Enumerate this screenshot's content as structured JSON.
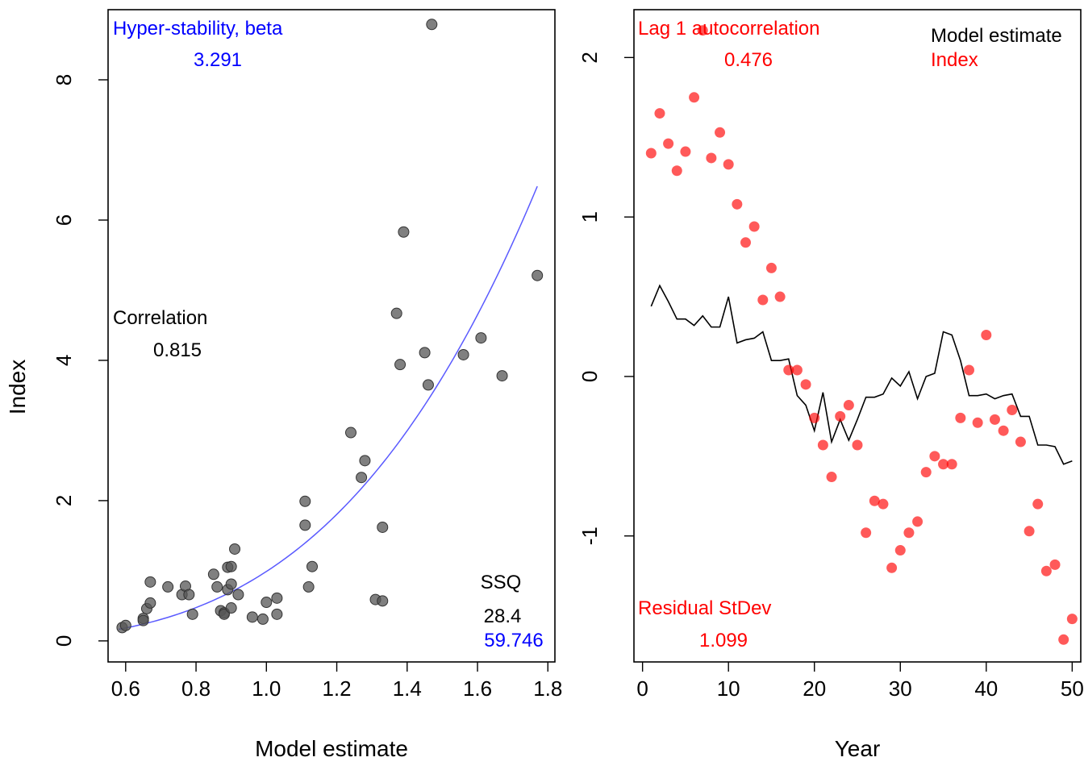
{
  "chart_data": [
    {
      "type": "scatter",
      "xlabel": "Model estimate",
      "ylabel": "Index",
      "xlim": [
        0.55,
        1.82
      ],
      "ylim": [
        -0.3,
        9.0
      ],
      "x_ticks": [
        "0.6",
        "0.8",
        "1.0",
        "1.2",
        "1.4",
        "1.6",
        "1.8"
      ],
      "y_ticks": [
        "0",
        "2",
        "4",
        "6",
        "8"
      ],
      "point_color": "#555555",
      "curve_color": "#5a5aff",
      "points": [
        {
          "x": 0.59,
          "y": 0.19
        },
        {
          "x": 0.6,
          "y": 0.22
        },
        {
          "x": 0.65,
          "y": 0.32
        },
        {
          "x": 0.65,
          "y": 0.29
        },
        {
          "x": 0.66,
          "y": 0.46
        },
        {
          "x": 0.67,
          "y": 0.84
        },
        {
          "x": 0.67,
          "y": 0.54
        },
        {
          "x": 0.72,
          "y": 0.77
        },
        {
          "x": 0.76,
          "y": 0.66
        },
        {
          "x": 0.77,
          "y": 0.78
        },
        {
          "x": 0.78,
          "y": 0.66
        },
        {
          "x": 0.79,
          "y": 0.38
        },
        {
          "x": 0.85,
          "y": 0.95
        },
        {
          "x": 0.86,
          "y": 0.77
        },
        {
          "x": 0.87,
          "y": 0.43
        },
        {
          "x": 0.88,
          "y": 0.4
        },
        {
          "x": 0.88,
          "y": 0.38
        },
        {
          "x": 0.89,
          "y": 1.05
        },
        {
          "x": 0.89,
          "y": 0.73
        },
        {
          "x": 0.9,
          "y": 1.06
        },
        {
          "x": 0.9,
          "y": 0.81
        },
        {
          "x": 0.9,
          "y": 0.47
        },
        {
          "x": 0.91,
          "y": 1.31
        },
        {
          "x": 0.92,
          "y": 0.66
        },
        {
          "x": 0.96,
          "y": 0.34
        },
        {
          "x": 0.99,
          "y": 0.31
        },
        {
          "x": 1.0,
          "y": 0.55
        },
        {
          "x": 1.03,
          "y": 0.61
        },
        {
          "x": 1.03,
          "y": 0.38
        },
        {
          "x": 1.11,
          "y": 1.99
        },
        {
          "x": 1.11,
          "y": 1.65
        },
        {
          "x": 1.12,
          "y": 0.77
        },
        {
          "x": 1.13,
          "y": 1.06
        },
        {
          "x": 1.24,
          "y": 2.97
        },
        {
          "x": 1.27,
          "y": 2.33
        },
        {
          "x": 1.28,
          "y": 2.57
        },
        {
          "x": 1.31,
          "y": 0.59
        },
        {
          "x": 1.33,
          "y": 1.62
        },
        {
          "x": 1.33,
          "y": 0.57
        },
        {
          "x": 1.37,
          "y": 4.67
        },
        {
          "x": 1.38,
          "y": 3.94
        },
        {
          "x": 1.39,
          "y": 5.83
        },
        {
          "x": 1.45,
          "y": 4.11
        },
        {
          "x": 1.46,
          "y": 3.65
        },
        {
          "x": 1.47,
          "y": 8.79
        },
        {
          "x": 1.56,
          "y": 4.08
        },
        {
          "x": 1.61,
          "y": 4.32
        },
        {
          "x": 1.67,
          "y": 3.78
        },
        {
          "x": 1.77,
          "y": 5.21
        }
      ],
      "curve": {
        "x_min": 0.58,
        "x_max": 1.77,
        "q": 0.99,
        "beta": 3.291
      },
      "annotations": {
        "beta_label": "Hyper-stability, beta",
        "beta_value": "3.291",
        "corr_label": "Correlation",
        "corr_value": "0.815",
        "ssq_label": "SSQ",
        "ssq_value": "28.4",
        "ssq_value2": "59.746"
      },
      "colors": {
        "blue": "#0000ff",
        "black": "#000000"
      }
    },
    {
      "type": "line",
      "xlabel": "Year",
      "ylabel": "",
      "xlim": [
        -1,
        51
      ],
      "ylim": [
        -1.79,
        2.3
      ],
      "x_ticks": [
        "0",
        "10",
        "20",
        "30",
        "40",
        "50"
      ],
      "y_ticks": [
        "-1",
        "0",
        "1",
        "2"
      ],
      "series": [
        {
          "name": "Model estimate",
          "type": "line",
          "color": "#000000",
          "x": [
            1,
            2,
            3,
            4,
            5,
            6,
            7,
            8,
            9,
            10,
            11,
            12,
            13,
            14,
            15,
            16,
            17,
            18,
            19,
            20,
            21,
            22,
            23,
            24,
            25,
            26,
            27,
            28,
            29,
            30,
            31,
            32,
            33,
            34,
            35,
            36,
            37,
            38,
            39,
            40,
            41,
            42,
            43,
            44,
            45,
            46,
            47,
            48,
            49,
            50
          ],
          "y": [
            0.44,
            0.57,
            0.47,
            0.36,
            0.36,
            0.32,
            0.38,
            0.31,
            0.31,
            0.5,
            0.21,
            0.23,
            0.24,
            0.28,
            0.1,
            0.1,
            0.11,
            -0.12,
            -0.18,
            -0.34,
            -0.1,
            -0.41,
            -0.27,
            -0.4,
            -0.27,
            -0.13,
            -0.13,
            -0.11,
            -0.01,
            -0.06,
            0.03,
            -0.14,
            0.0,
            0.02,
            0.28,
            0.26,
            0.1,
            -0.12,
            -0.12,
            -0.11,
            -0.14,
            -0.12,
            -0.11,
            -0.25,
            -0.25,
            -0.43,
            -0.43,
            -0.44,
            -0.55,
            -0.53
          ]
        },
        {
          "name": "Index",
          "type": "scatter",
          "color": "#ff0000",
          "x": [
            1,
            2,
            3,
            4,
            5,
            6,
            7,
            8,
            9,
            10,
            11,
            12,
            13,
            14,
            15,
            16,
            17,
            18,
            19,
            20,
            21,
            22,
            23,
            24,
            25,
            26,
            27,
            28,
            29,
            30,
            31,
            32,
            33,
            34,
            35,
            36,
            37,
            38,
            39,
            40,
            41,
            42,
            43,
            44,
            45,
            46,
            47,
            48,
            49,
            50
          ],
          "y": [
            1.4,
            1.65,
            1.46,
            1.29,
            1.41,
            1.75,
            2.17,
            1.37,
            1.53,
            1.33,
            1.08,
            0.84,
            0.94,
            0.48,
            0.68,
            0.5,
            0.04,
            0.04,
            -0.05,
            -0.26,
            -0.43,
            -0.63,
            -0.25,
            -0.18,
            -0.43,
            -0.98,
            -0.78,
            -0.8,
            -1.2,
            -1.09,
            -0.98,
            -0.91,
            -0.6,
            -0.5,
            -0.55,
            -0.55,
            -0.26,
            0.04,
            -0.29,
            0.26,
            -0.27,
            -0.34,
            -0.21,
            -0.41,
            -0.97,
            -0.8,
            -1.22,
            -1.18,
            -1.65,
            -1.52
          ]
        }
      ],
      "annotations": {
        "autocorr_label": "Lag 1 autocorrelation",
        "autocorr_value": "0.476",
        "legend_model": "Model estimate",
        "legend_index": "Index",
        "stdev_label": "Residual StDev",
        "stdev_value": "1.099"
      },
      "colors": {
        "red": "#ff0000",
        "black": "#000000"
      }
    }
  ]
}
